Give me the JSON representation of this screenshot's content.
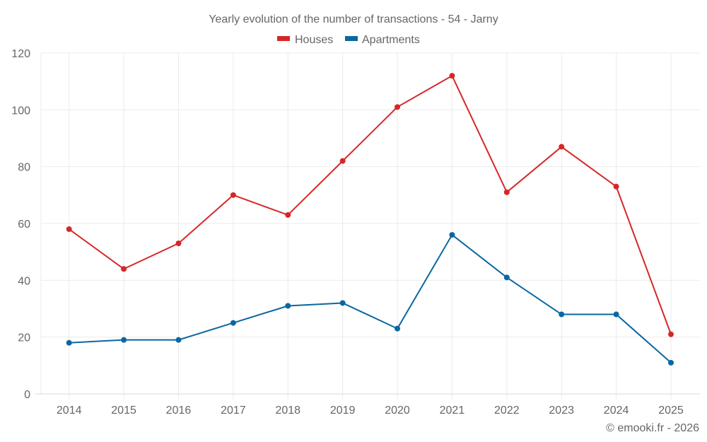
{
  "chart_data": {
    "type": "line",
    "title": "Yearly evolution of the number of transactions - 54 - Jarny",
    "xlabel": "",
    "ylabel": "",
    "x": [
      "2014",
      "2015",
      "2016",
      "2017",
      "2018",
      "2019",
      "2020",
      "2021",
      "2022",
      "2023",
      "2024",
      "2025"
    ],
    "ylim": [
      0,
      120
    ],
    "yticks": [
      0,
      20,
      40,
      60,
      80,
      100,
      120
    ],
    "grid": true,
    "legend_position": "top-center",
    "series": [
      {
        "name": "Houses",
        "color": "#d62728",
        "values": [
          58,
          44,
          53,
          70,
          63,
          82,
          101,
          112,
          71,
          87,
          73,
          21
        ]
      },
      {
        "name": "Apartments",
        "color": "#0a67a0",
        "values": [
          18,
          19,
          19,
          25,
          31,
          32,
          23,
          56,
          41,
          28,
          28,
          11
        ]
      }
    ],
    "credit": "© emooki.fr - 2026"
  }
}
